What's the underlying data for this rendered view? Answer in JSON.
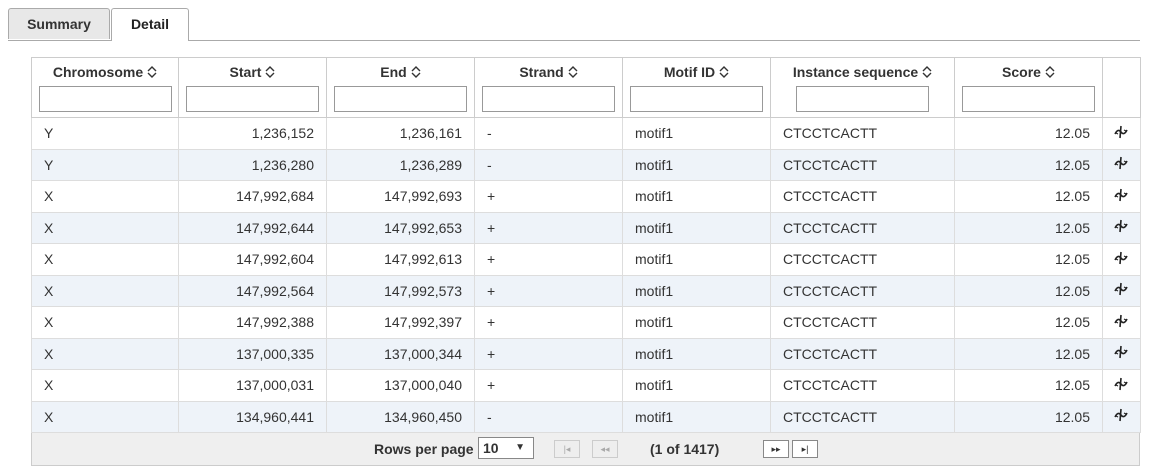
{
  "tabs": [
    "Summary",
    "Detail"
  ],
  "table": {
    "columns": [
      "Chromosome",
      "Start",
      "End",
      "Strand",
      "Motif ID",
      "Instance sequence",
      "Score"
    ],
    "rows": [
      [
        "Y",
        "1,236,152",
        "1,236,161",
        "-",
        "motif1",
        "CTCCTCACTT",
        "12.05"
      ],
      [
        "Y",
        "1,236,280",
        "1,236,289",
        "-",
        "motif1",
        "CTCCTCACTT",
        "12.05"
      ],
      [
        "X",
        "147,992,684",
        "147,992,693",
        "+",
        "motif1",
        "CTCCTCACTT",
        "12.05"
      ],
      [
        "X",
        "147,992,644",
        "147,992,653",
        "+",
        "motif1",
        "CTCCTCACTT",
        "12.05"
      ],
      [
        "X",
        "147,992,604",
        "147,992,613",
        "+",
        "motif1",
        "CTCCTCACTT",
        "12.05"
      ],
      [
        "X",
        "147,992,564",
        "147,992,573",
        "+",
        "motif1",
        "CTCCTCACTT",
        "12.05"
      ],
      [
        "X",
        "147,992,388",
        "147,992,397",
        "+",
        "motif1",
        "CTCCTCACTT",
        "12.05"
      ],
      [
        "X",
        "137,000,335",
        "137,000,344",
        "+",
        "motif1",
        "CTCCTCACTT",
        "12.05"
      ],
      [
        "X",
        "137,000,031",
        "137,000,040",
        "+",
        "motif1",
        "CTCCTCACTT",
        "12.05"
      ],
      [
        "X",
        "134,960,441",
        "134,960,450",
        "-",
        "motif1",
        "CTCCTCACTT",
        "12.05"
      ]
    ]
  },
  "footer": {
    "rows_per_page_label": "Rows per page",
    "page_size": "10",
    "page_info": "(1 of 1417)"
  }
}
